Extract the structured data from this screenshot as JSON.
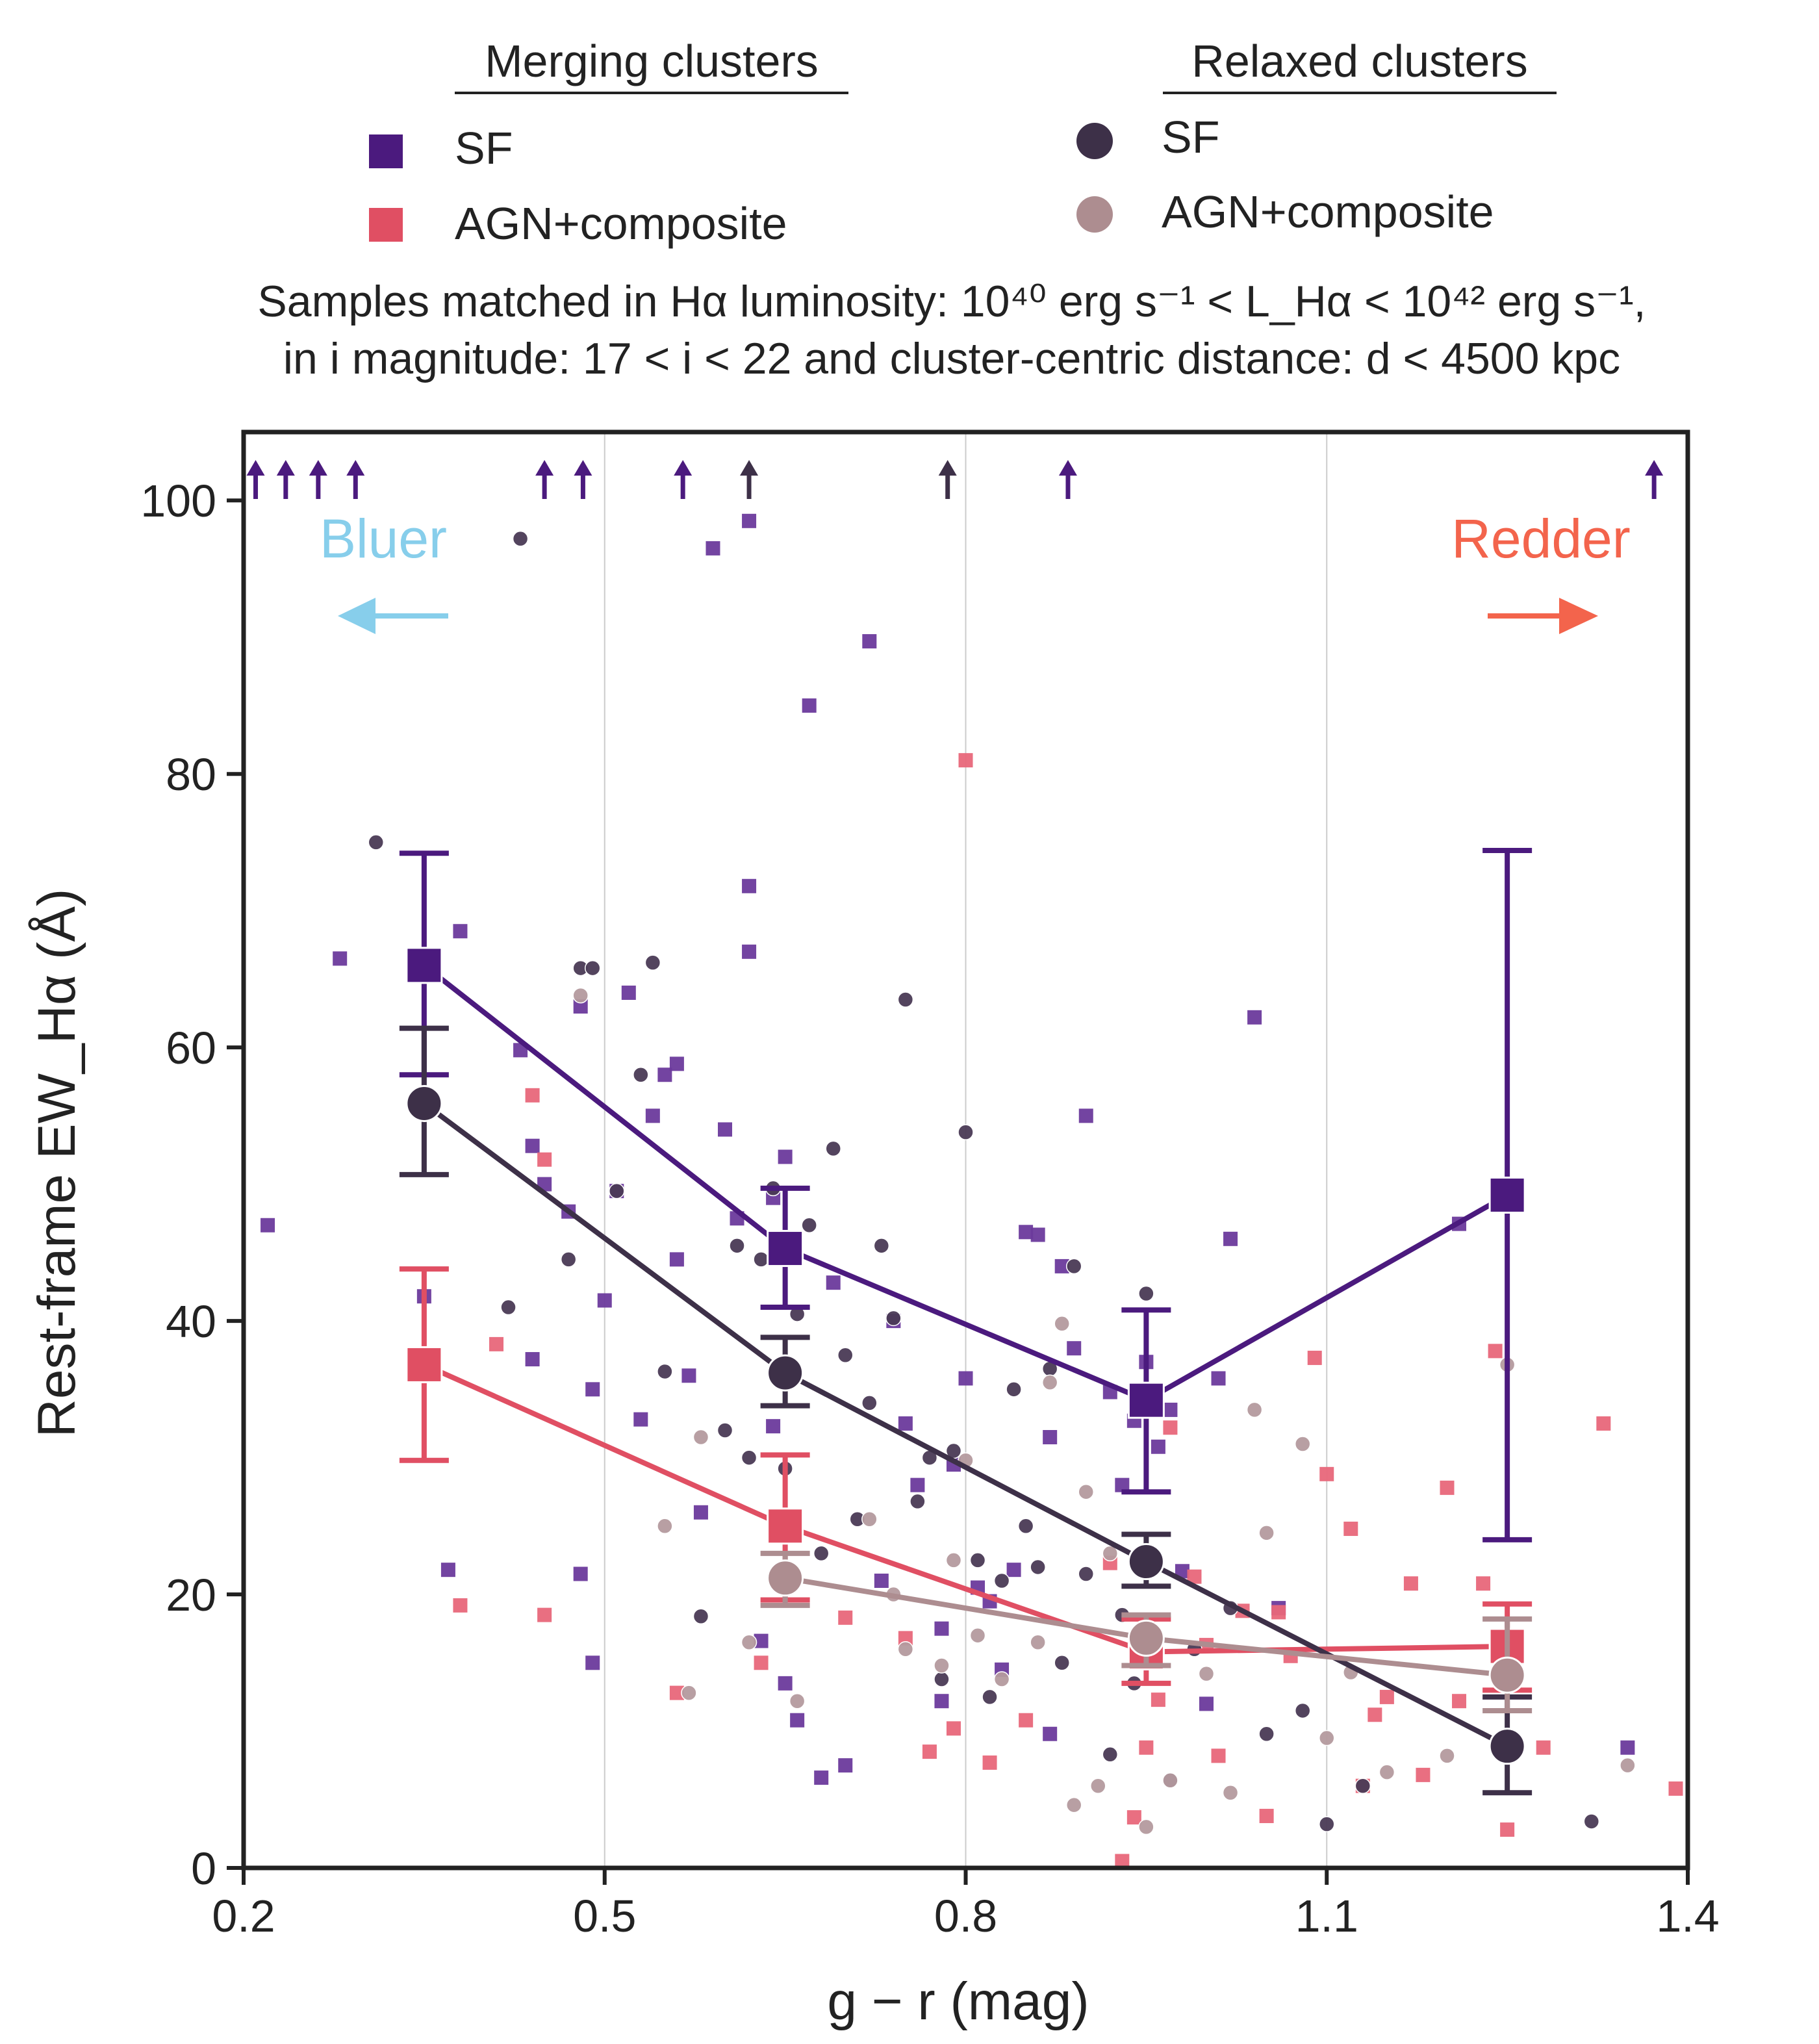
{
  "chart_data": {
    "type": "scatter",
    "title_lines": [
      "Samples matched in Hα luminosity: 10⁴⁰ erg s⁻¹ < L_Hα < 10⁴² erg s⁻¹,",
      "in i magnitude: 17 < i < 22 and cluster-centric distance: d < 4500 kpc"
    ],
    "xlabel": "g − r (mag)",
    "ylabel": "Rest-frame EW_Hα (Å)",
    "xlim": [
      0.2,
      1.4
    ],
    "ylim": [
      0,
      105
    ],
    "xticks": [
      "0.2",
      "0.5",
      "0.8",
      "1.1",
      "1.4"
    ],
    "yticks": [
      "0",
      "20",
      "40",
      "60",
      "80",
      "100"
    ],
    "grid": "vertical",
    "legend": {
      "placement": "top",
      "groups": [
        {
          "title": "Merging clusters",
          "items": [
            {
              "label": "SF",
              "marker": "square",
              "color": "#4b1a7e"
            },
            {
              "label": "AGN+composite",
              "marker": "square",
              "color": "#e04f63"
            }
          ]
        },
        {
          "title": "Relaxed clusters",
          "items": [
            {
              "label": "SF",
              "marker": "circle",
              "color": "#3d3048"
            },
            {
              "label": "AGN+composite",
              "marker": "circle",
              "color": "#ad8d90"
            }
          ]
        }
      ]
    },
    "annotations": [
      {
        "text": "Bluer",
        "color": "#87ceeb",
        "arrow": "left"
      },
      {
        "text": "Redder",
        "color": "#f3644c",
        "arrow": "right"
      }
    ],
    "binned_series": [
      {
        "name": "Merging clusters SF",
        "marker": "square",
        "color": "#4b1a7e",
        "x": [
          0.35,
          0.65,
          0.95,
          1.25
        ],
        "y": [
          66,
          45.3,
          34.2,
          49.2
        ],
        "err_low": [
          58,
          41,
          27.5,
          24
        ],
        "err_high": [
          74.2,
          49.7,
          40.8,
          74.4
        ]
      },
      {
        "name": "Merging clusters AGN+composite",
        "marker": "square",
        "color": "#e04f63",
        "x": [
          0.35,
          0.65,
          0.95,
          1.25
        ],
        "y": [
          36.8,
          25,
          15.8,
          16.2
        ],
        "err_low": [
          29.8,
          19.6,
          13.5,
          13
        ],
        "err_high": [
          43.8,
          30.2,
          18.2,
          19.3
        ]
      },
      {
        "name": "Relaxed clusters SF",
        "marker": "circle",
        "color": "#3d3048",
        "x": [
          0.35,
          0.65,
          0.95,
          1.25
        ],
        "y": [
          55.9,
          36.2,
          22.4,
          8.9
        ],
        "err_low": [
          50.7,
          33.8,
          20.6,
          5.5
        ],
        "err_high": [
          61.4,
          38.8,
          24.4,
          12.5
        ]
      },
      {
        "name": "Relaxed clusters AGN+composite",
        "marker": "circle",
        "color": "#ad8d90",
        "x": [
          0.65,
          0.95,
          1.25
        ],
        "y": [
          21.2,
          16.8,
          14.1
        ],
        "err_low": [
          19.2,
          14.8,
          11.5
        ],
        "err_high": [
          23,
          18.5,
          18.2
        ]
      }
    ],
    "upper_arrows": [
      {
        "x": 0.21,
        "color": "#4b1a7e"
      },
      {
        "x": 0.235,
        "color": "#4b1a7e"
      },
      {
        "x": 0.262,
        "color": "#4b1a7e"
      },
      {
        "x": 0.293,
        "color": "#4b1a7e"
      },
      {
        "x": 0.45,
        "color": "#4b1a7e"
      },
      {
        "x": 0.482,
        "color": "#4b1a7e"
      },
      {
        "x": 0.565,
        "color": "#4b1a7e"
      },
      {
        "x": 0.62,
        "color": "#3d3048"
      },
      {
        "x": 0.785,
        "color": "#3d3048"
      },
      {
        "x": 0.885,
        "color": "#4b1a7e"
      },
      {
        "x": 1.372,
        "color": "#4b1a7e"
      }
    ],
    "scatter": {
      "merging_sf": {
        "color": "#6b3a9c",
        "points": [
          [
            0.22,
            47
          ],
          [
            0.28,
            66.5
          ],
          [
            0.35,
            41.8
          ],
          [
            0.37,
            21.8
          ],
          [
            0.38,
            68.5
          ],
          [
            0.43,
            59.8
          ],
          [
            0.44,
            52.8
          ],
          [
            0.44,
            37.2
          ],
          [
            0.45,
            50
          ],
          [
            0.47,
            48
          ],
          [
            0.48,
            63
          ],
          [
            0.48,
            21.5
          ],
          [
            0.49,
            35
          ],
          [
            0.49,
            15
          ],
          [
            0.5,
            41.5
          ],
          [
            0.51,
            49.5
          ],
          [
            0.52,
            64
          ],
          [
            0.53,
            32.8
          ],
          [
            0.54,
            55
          ],
          [
            0.55,
            58
          ],
          [
            0.56,
            58.8
          ],
          [
            0.56,
            44.5
          ],
          [
            0.57,
            36
          ],
          [
            0.58,
            26
          ],
          [
            0.59,
            96.5
          ],
          [
            0.6,
            54
          ],
          [
            0.61,
            47.5
          ],
          [
            0.62,
            98.5
          ],
          [
            0.62,
            67
          ],
          [
            0.62,
            71.8
          ],
          [
            0.63,
            16.6
          ],
          [
            0.64,
            49
          ],
          [
            0.64,
            32.3
          ],
          [
            0.65,
            13.5
          ],
          [
            0.65,
            52
          ],
          [
            0.66,
            10.8
          ],
          [
            0.67,
            85
          ],
          [
            0.68,
            6.6
          ],
          [
            0.69,
            42.8
          ],
          [
            0.7,
            7.5
          ],
          [
            0.72,
            89.7
          ],
          [
            0.73,
            21
          ],
          [
            0.74,
            40
          ],
          [
            0.75,
            32.5
          ],
          [
            0.76,
            28
          ],
          [
            0.78,
            17.5
          ],
          [
            0.78,
            12.2
          ],
          [
            0.79,
            29.5
          ],
          [
            0.8,
            35.8
          ],
          [
            0.81,
            20.5
          ],
          [
            0.82,
            19.5
          ],
          [
            0.83,
            14.5
          ],
          [
            0.84,
            21.8
          ],
          [
            0.85,
            46.5
          ],
          [
            0.86,
            46.3
          ],
          [
            0.87,
            31.5
          ],
          [
            0.87,
            9.8
          ],
          [
            0.88,
            44
          ],
          [
            0.89,
            38
          ],
          [
            0.9,
            55
          ],
          [
            0.92,
            34.8
          ],
          [
            0.93,
            28
          ],
          [
            0.94,
            32.7
          ],
          [
            0.95,
            37
          ],
          [
            0.96,
            30.8
          ],
          [
            0.97,
            33.5
          ],
          [
            0.98,
            21.7
          ],
          [
            1.0,
            12
          ],
          [
            1.01,
            35.8
          ],
          [
            1.02,
            46
          ],
          [
            1.04,
            62.2
          ],
          [
            1.06,
            19
          ],
          [
            1.21,
            47.1
          ],
          [
            1.35,
            8.8
          ]
        ]
      },
      "merging_agn": {
        "color": "#e8677a",
        "points": [
          [
            0.38,
            19.2
          ],
          [
            0.41,
            38.3
          ],
          [
            0.44,
            56.5
          ],
          [
            0.45,
            18.5
          ],
          [
            0.45,
            51.8
          ],
          [
            0.56,
            12.8
          ],
          [
            0.63,
            15
          ],
          [
            0.7,
            18.3
          ],
          [
            0.75,
            16.8
          ],
          [
            0.77,
            8.5
          ],
          [
            0.79,
            10.2
          ],
          [
            0.8,
            81
          ],
          [
            0.82,
            7.7
          ],
          [
            0.85,
            10.8
          ],
          [
            0.92,
            22.3
          ],
          [
            0.93,
            0.5
          ],
          [
            0.94,
            3.7
          ],
          [
            0.95,
            8.8
          ],
          [
            0.96,
            12.3
          ],
          [
            0.97,
            32.2
          ],
          [
            0.99,
            21.3
          ],
          [
            1.0,
            16.3
          ],
          [
            1.01,
            8.2
          ],
          [
            1.03,
            18.8
          ],
          [
            1.05,
            3.8
          ],
          [
            1.06,
            18.7
          ],
          [
            1.07,
            15.5
          ],
          [
            1.09,
            37.3
          ],
          [
            1.1,
            28.8
          ],
          [
            1.12,
            24.8
          ],
          [
            1.13,
            6
          ],
          [
            1.14,
            11.2
          ],
          [
            1.15,
            12.5
          ],
          [
            1.17,
            20.8
          ],
          [
            1.18,
            6.8
          ],
          [
            1.2,
            27.8
          ],
          [
            1.21,
            12.2
          ],
          [
            1.23,
            20.8
          ],
          [
            1.24,
            37.8
          ],
          [
            1.25,
            2.8
          ],
          [
            1.28,
            8.8
          ],
          [
            1.33,
            32.5
          ],
          [
            1.39,
            5.8
          ]
        ]
      },
      "relaxed_sf": {
        "color": "#4a3a55",
        "points": [
          [
            0.31,
            75
          ],
          [
            0.42,
            41
          ],
          [
            0.43,
            97.2
          ],
          [
            0.47,
            44.5
          ],
          [
            0.48,
            65.8
          ],
          [
            0.49,
            65.8
          ],
          [
            0.51,
            49.5
          ],
          [
            0.53,
            58
          ],
          [
            0.54,
            66.2
          ],
          [
            0.55,
            36.3
          ],
          [
            0.58,
            18.4
          ],
          [
            0.6,
            32
          ],
          [
            0.61,
            45.5
          ],
          [
            0.62,
            30
          ],
          [
            0.63,
            44.5
          ],
          [
            0.64,
            49.7
          ],
          [
            0.65,
            29.2
          ],
          [
            0.66,
            40.5
          ],
          [
            0.67,
            47
          ],
          [
            0.68,
            23
          ],
          [
            0.69,
            52.6
          ],
          [
            0.7,
            37.5
          ],
          [
            0.71,
            25.5
          ],
          [
            0.72,
            34
          ],
          [
            0.73,
            45.5
          ],
          [
            0.74,
            40.2
          ],
          [
            0.75,
            63.5
          ],
          [
            0.76,
            26.8
          ],
          [
            0.77,
            30
          ],
          [
            0.78,
            13.8
          ],
          [
            0.79,
            30.5
          ],
          [
            0.8,
            53.8
          ],
          [
            0.81,
            22.5
          ],
          [
            0.82,
            12.5
          ],
          [
            0.83,
            21
          ],
          [
            0.84,
            35
          ],
          [
            0.85,
            25
          ],
          [
            0.86,
            22
          ],
          [
            0.87,
            36.5
          ],
          [
            0.88,
            15
          ],
          [
            0.89,
            44
          ],
          [
            0.9,
            21.5
          ],
          [
            0.92,
            8.3
          ],
          [
            0.93,
            18.5
          ],
          [
            0.94,
            13.5
          ],
          [
            0.95,
            42
          ],
          [
            0.97,
            6.4
          ],
          [
            0.99,
            16
          ],
          [
            1.02,
            19
          ],
          [
            1.05,
            9.8
          ],
          [
            1.08,
            11.5
          ],
          [
            1.1,
            3.2
          ],
          [
            1.13,
            6
          ],
          [
            1.32,
            3.4
          ]
        ]
      },
      "relaxed_agn": {
        "color": "#b49a9e",
        "points": [
          [
            0.48,
            63.8
          ],
          [
            0.55,
            25
          ],
          [
            0.57,
            12.8
          ],
          [
            0.58,
            31.5
          ],
          [
            0.62,
            16.5
          ],
          [
            0.66,
            12.2
          ],
          [
            0.72,
            25.5
          ],
          [
            0.74,
            20
          ],
          [
            0.75,
            16
          ],
          [
            0.78,
            14.8
          ],
          [
            0.79,
            22.5
          ],
          [
            0.8,
            29.8
          ],
          [
            0.81,
            17
          ],
          [
            0.83,
            13.8
          ],
          [
            0.86,
            16.5
          ],
          [
            0.87,
            35.5
          ],
          [
            0.88,
            39.8
          ],
          [
            0.89,
            4.6
          ],
          [
            0.9,
            27.5
          ],
          [
            0.91,
            6
          ],
          [
            0.92,
            23
          ],
          [
            0.95,
            3
          ],
          [
            0.97,
            6.4
          ],
          [
            1.0,
            14.2
          ],
          [
            1.02,
            5.5
          ],
          [
            1.04,
            33.5
          ],
          [
            1.05,
            24.5
          ],
          [
            1.08,
            31
          ],
          [
            1.1,
            9.5
          ],
          [
            1.12,
            14.3
          ],
          [
            1.15,
            7
          ],
          [
            1.2,
            8.2
          ],
          [
            1.25,
            36.8
          ],
          [
            1.35,
            7.5
          ]
        ]
      }
    }
  }
}
